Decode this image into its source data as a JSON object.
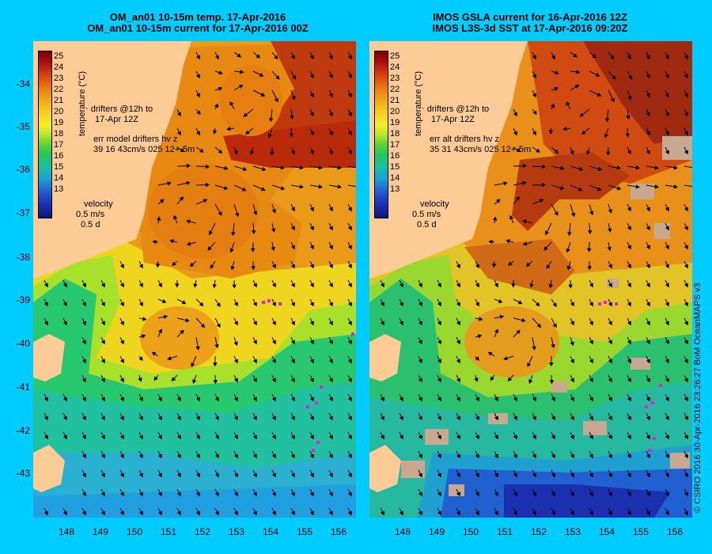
{
  "left_panel": {
    "title_line1": "OM_an01 10-15m temp. 17-Apr-2016",
    "title_line2": "OM_an01 10-15m current for 17-Apr-2016 00Z",
    "drifters_line1": "drifters @12h to",
    "drifters_line2": "17-Apr 12Z",
    "err_line1": "err model drifters hv z",
    "err_line2": "39 16 43cm/s 025 12+-5m",
    "velocity_label": "velocity",
    "velocity_scale": "0.5 m/s",
    "velocity_time": "0.5 d"
  },
  "right_panel": {
    "title_line1": "IMOS GSLA current for 16-Apr-2016 12Z",
    "title_line2": "IMOS L3S-3d SST at 17-Apr-2016 09:20Z",
    "drifters_line1": "drifters @12h to",
    "drifters_line2": "17-Apr 12Z",
    "err_line1": "err alt drifters hv z",
    "err_line2": "35 31 43cm/s 025 12+-5m",
    "velocity_label": "velocity",
    "velocity_scale": "0.5 m/s",
    "velocity_time": "0.5 d"
  },
  "colorbar": {
    "label": "temperature (°C)",
    "ticks": [
      "25",
      "24",
      "23",
      "22",
      "21",
      "20",
      "19",
      "18",
      "17",
      "16",
      "15",
      "14",
      "13"
    ]
  },
  "axes": {
    "lat_ticks": [
      "-34",
      "-35",
      "-36",
      "-37",
      "-38",
      "-39",
      "-40",
      "-41",
      "-42",
      "-43"
    ],
    "lon_ticks": [
      "148",
      "149",
      "150",
      "151",
      "152",
      "153",
      "154",
      "155",
      "156"
    ]
  },
  "copyright": "© CSIRO 2016   30-Apr-2016 23:26:27 BoM OceanMAPS v3",
  "colors": {
    "background": "#00ccff",
    "land": "#fccb96",
    "drifter": "#e020e0"
  }
}
